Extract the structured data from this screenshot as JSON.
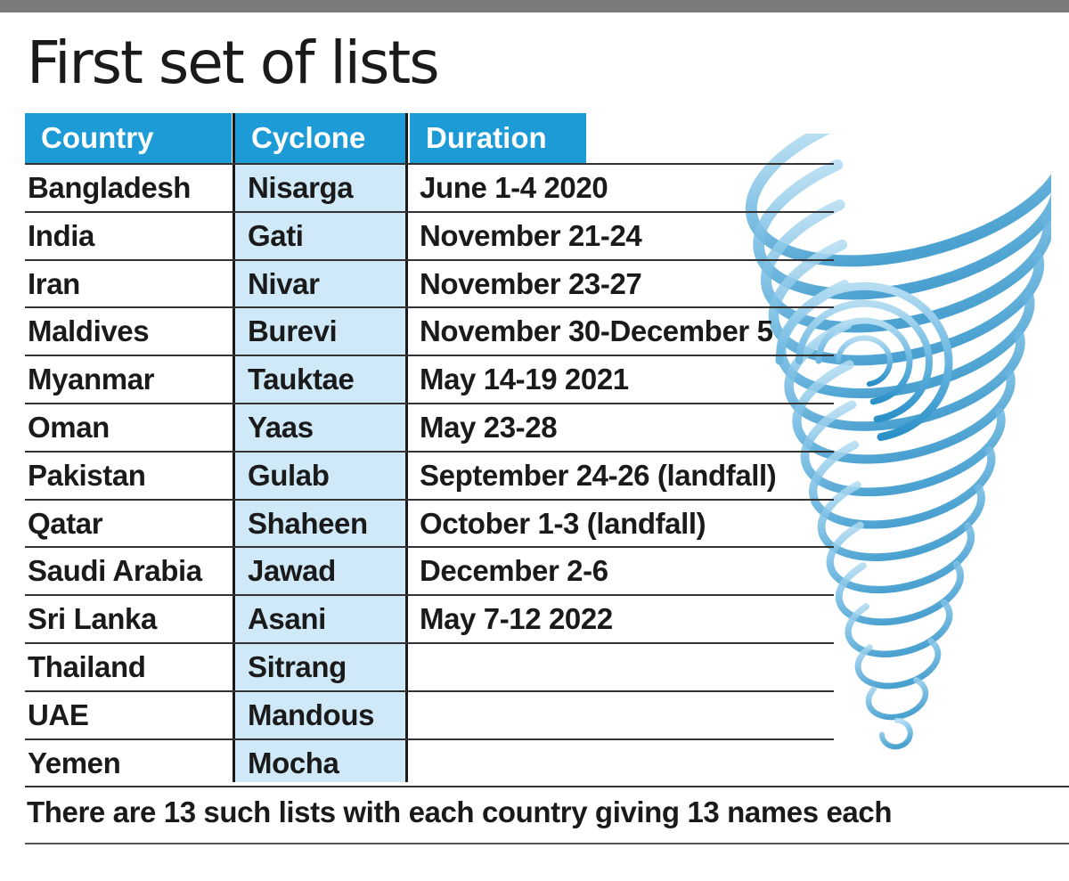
{
  "title": "First set of lists",
  "table": {
    "headers": [
      "Country",
      "Cyclone",
      "Duration"
    ],
    "rows": [
      {
        "country": "Bangladesh",
        "cyclone": "Nisarga",
        "duration": "June 1-4 2020"
      },
      {
        "country": "India",
        "cyclone": "Gati",
        "duration": "November 21-24"
      },
      {
        "country": "Iran",
        "cyclone": "Nivar",
        "duration": "November 23-27"
      },
      {
        "country": "Maldives",
        "cyclone": "Burevi",
        "duration": "November 30-December 5"
      },
      {
        "country": "Myanmar",
        "cyclone": "Tauktae",
        "duration": "May 14-19 2021"
      },
      {
        "country": "Oman",
        "cyclone": "Yaas",
        "duration": "May 23-28"
      },
      {
        "country": "Pakistan",
        "cyclone": "Gulab",
        "duration": "September 24-26 (landfall)"
      },
      {
        "country": "Qatar",
        "cyclone": "Shaheen",
        "duration": "October 1-3 (landfall)"
      },
      {
        "country": "Saudi Arabia",
        "cyclone": "Jawad",
        "duration": "December 2-6"
      },
      {
        "country": "Sri Lanka",
        "cyclone": "Asani",
        "duration": "May 7-12 2022"
      },
      {
        "country": "Thailand",
        "cyclone": "Sitrang",
        "duration": ""
      },
      {
        "country": "UAE",
        "cyclone": "Mandous",
        "duration": ""
      },
      {
        "country": "Yemen",
        "cyclone": "Mocha",
        "duration": ""
      }
    ]
  },
  "footnote": "There are 13 such lists with each country giving 13 names each",
  "colors": {
    "header_bg": "#1d9bd7",
    "header_text": "#ffffff",
    "cyclone_column_bg": "#cfe9f8",
    "swirl_light": "#9ed3ee",
    "swirl_dark": "#2a90c8"
  },
  "icons": {
    "illustration": "cyclone-swirl-icon"
  }
}
